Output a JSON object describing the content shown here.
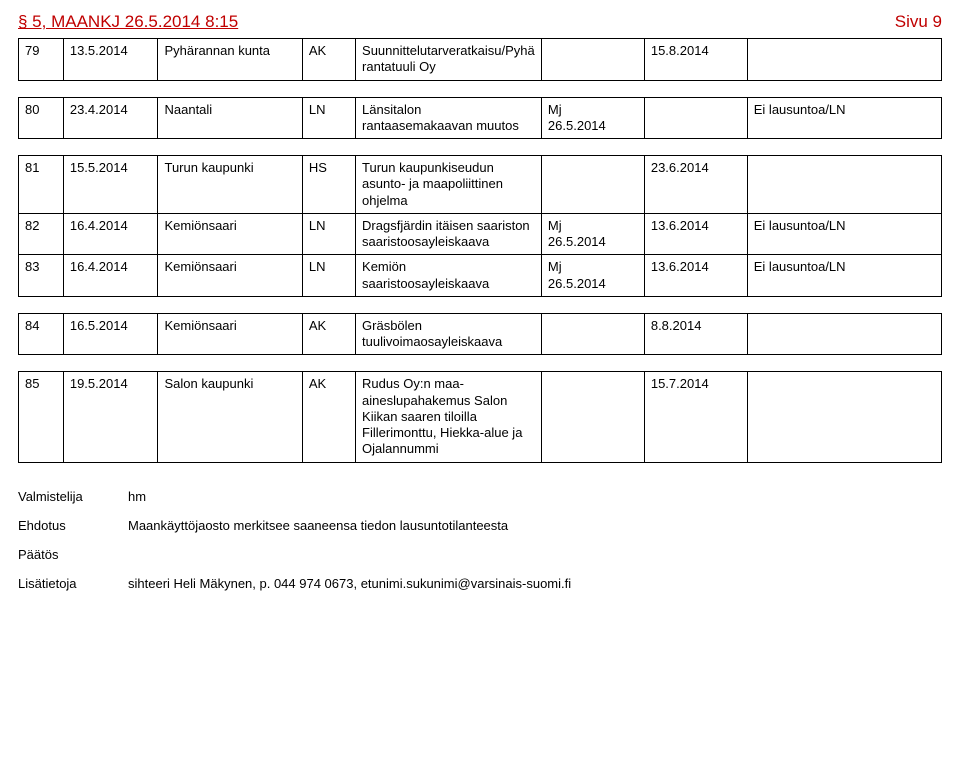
{
  "header": {
    "title": "§ 5, MAANKJ 26.5.2014 8:15",
    "page": "Sivu 9"
  },
  "tables": [
    {
      "rows": [
        {
          "n": "79",
          "date": "13.5.2014",
          "org": "Pyhärannan kunta",
          "code": "AK",
          "desc": "Suunnittelutarveratkaisu/Pyhärantatuuli Oy",
          "mj": "",
          "due": "15.8.2014",
          "note": ""
        }
      ]
    },
    {
      "rows": [
        {
          "n": "80",
          "date": "23.4.2014",
          "org": "Naantali",
          "code": "LN",
          "desc": "Länsitalon rantaasemakaavan muutos",
          "mj": "Mj\n26.5.2014",
          "due": "",
          "note": "Ei lausuntoa/LN"
        }
      ]
    },
    {
      "rows": [
        {
          "n": "81",
          "date": "15.5.2014",
          "org": "Turun kaupunki",
          "code": "HS",
          "desc": "Turun kaupunkiseudun asunto- ja maapoliittinen ohjelma",
          "mj": "",
          "due": "23.6.2014",
          "note": ""
        },
        {
          "n": "82",
          "date": "16.4.2014",
          "org": "Kemiönsaari",
          "code": "LN",
          "desc": "Dragsfjärdin itäisen saariston saaristoosayleiskaava",
          "mj": "Mj\n26.5.2014",
          "due": "13.6.2014",
          "note": "Ei lausuntoa/LN"
        },
        {
          "n": "83",
          "date": "16.4.2014",
          "org": "Kemiönsaari",
          "code": "LN",
          "desc": "Kemiön saaristoosayleiskaava",
          "mj": "Mj\n26.5.2014",
          "due": "13.6.2014",
          "note": "Ei lausuntoa/LN"
        }
      ]
    },
    {
      "rows": [
        {
          "n": "84",
          "date": "16.5.2014",
          "org": "Kemiönsaari",
          "code": "AK",
          "desc": "Gräsbölen tuulivoimaosayleiskaava",
          "mj": "",
          "due": "8.8.2014",
          "note": ""
        }
      ]
    },
    {
      "rows": [
        {
          "n": "85",
          "date": "19.5.2014",
          "org": "Salon kaupunki",
          "code": "AK",
          "desc": "Rudus Oy:n maa-aineslupahakemus Salon Kiikan saaren tiloilla Fillerimonttu, Hiekka-alue ja Ojalannummi",
          "mj": "",
          "due": "15.7.2014",
          "note": ""
        }
      ]
    }
  ],
  "footer": {
    "valmistelija_label": "Valmistelija",
    "valmistelija_value": "hm",
    "ehdotus_label": "Ehdotus",
    "ehdotus_value": "Maankäyttöjaosto merkitsee saaneensa tiedon lausuntotilanteesta",
    "paatos_label": "Päätös",
    "paatos_value": "",
    "lisatietoja_label": "Lisätietoja",
    "lisatietoja_value": "sihteeri Heli Mäkynen, p. 044 974 0673, etunimi.sukunimi@varsinais-suomi.fi"
  }
}
